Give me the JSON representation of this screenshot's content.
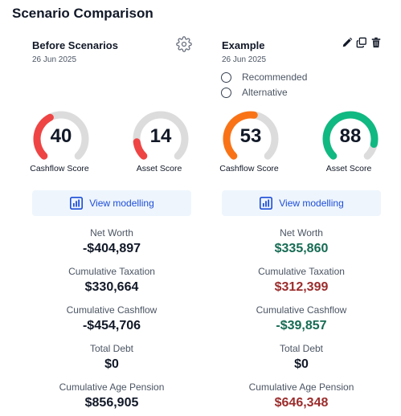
{
  "page": {
    "title": "Scenario Comparison"
  },
  "colors": {
    "gauge_track": "#dcdcdc",
    "gauge_red": "#ef4444",
    "gauge_orange": "#f97316",
    "gauge_green": "#10b981",
    "better": "#166b53",
    "worse": "#9b2c2c",
    "accent": "#1d4ed8"
  },
  "cards": [
    {
      "name": "Before Scenarios",
      "date": "26 Jun 2025",
      "options": [],
      "gauges": [
        {
          "value": "40",
          "label": "Cashflow Score",
          "score": 40,
          "color": "#ef4444"
        },
        {
          "value": "14",
          "label": "Asset Score",
          "score": 14,
          "color": "#ef4444"
        }
      ],
      "button_label": "View modelling",
      "metrics": [
        {
          "label": "Net Worth",
          "value": "-$404,897",
          "tone": ""
        },
        {
          "label": "Cumulative Taxation",
          "value": "$330,664",
          "tone": ""
        },
        {
          "label": "Cumulative Cashflow",
          "value": "-$454,706",
          "tone": ""
        },
        {
          "label": "Total Debt",
          "value": "$0",
          "tone": ""
        },
        {
          "label": "Cumulative Age Pension",
          "value": "$856,905",
          "tone": ""
        }
      ]
    },
    {
      "name": "Example",
      "date": "26 Jun 2025",
      "options": [
        "Recommended",
        "Alternative"
      ],
      "gauges": [
        {
          "value": "53",
          "label": "Cashflow Score",
          "score": 53,
          "color": "#f97316"
        },
        {
          "value": "88",
          "label": "Asset Score",
          "score": 88,
          "color": "#10b981"
        }
      ],
      "button_label": "View modelling",
      "metrics": [
        {
          "label": "Net Worth",
          "value": "$335,860",
          "tone": "pos"
        },
        {
          "label": "Cumulative Taxation",
          "value": "$312,399",
          "tone": "neg"
        },
        {
          "label": "Cumulative Cashflow",
          "value": "-$39,857",
          "tone": "pos"
        },
        {
          "label": "Total Debt",
          "value": "$0",
          "tone": ""
        },
        {
          "label": "Cumulative Age Pension",
          "value": "$646,348",
          "tone": "neg"
        }
      ]
    }
  ]
}
